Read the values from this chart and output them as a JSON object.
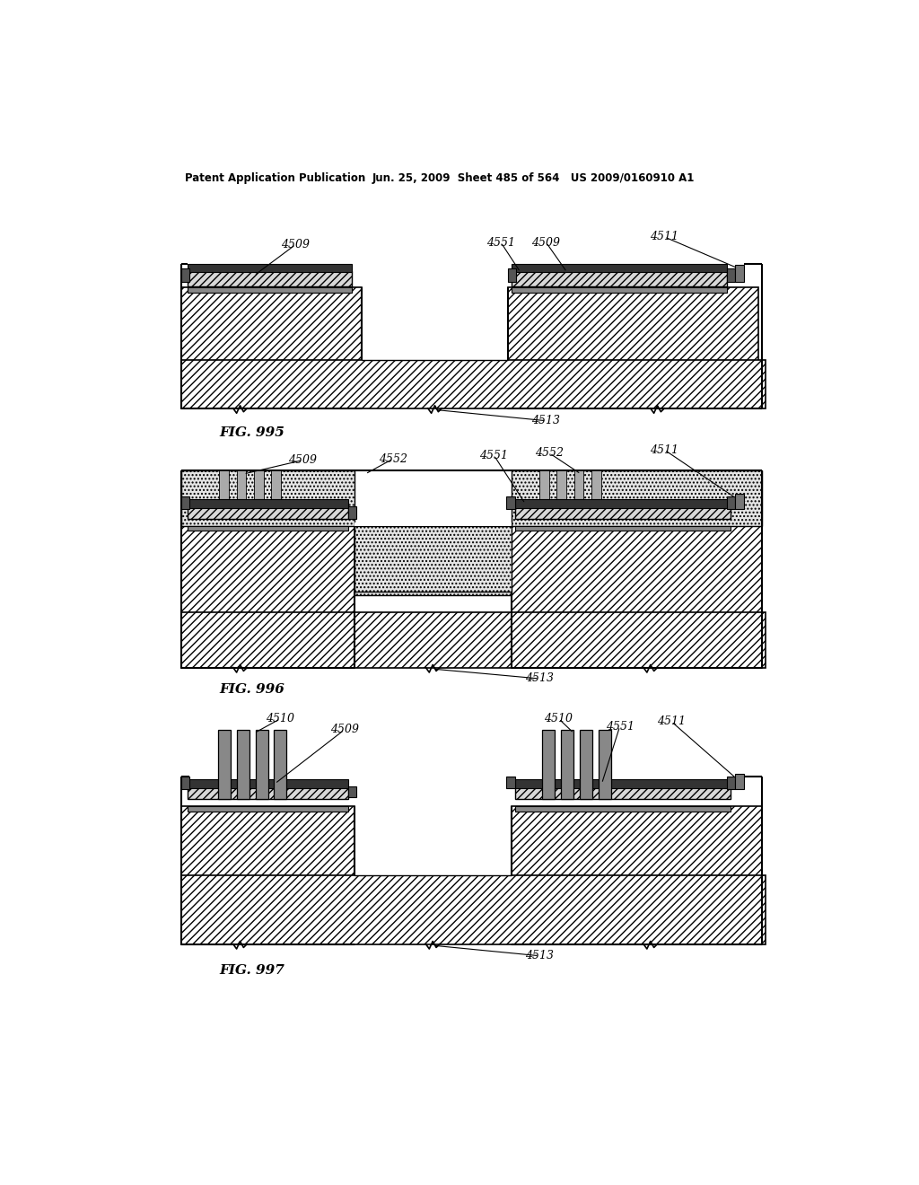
{
  "page_header_left": "Patent Application Publication",
  "page_header_right": "Jun. 25, 2009  Sheet 485 of 564   US 2009/0160910 A1",
  "fig995_label": "FIG. 995",
  "fig996_label": "FIG. 996",
  "fig997_label": "FIG. 997",
  "bg_color": "#ffffff",
  "line_color": "#000000"
}
